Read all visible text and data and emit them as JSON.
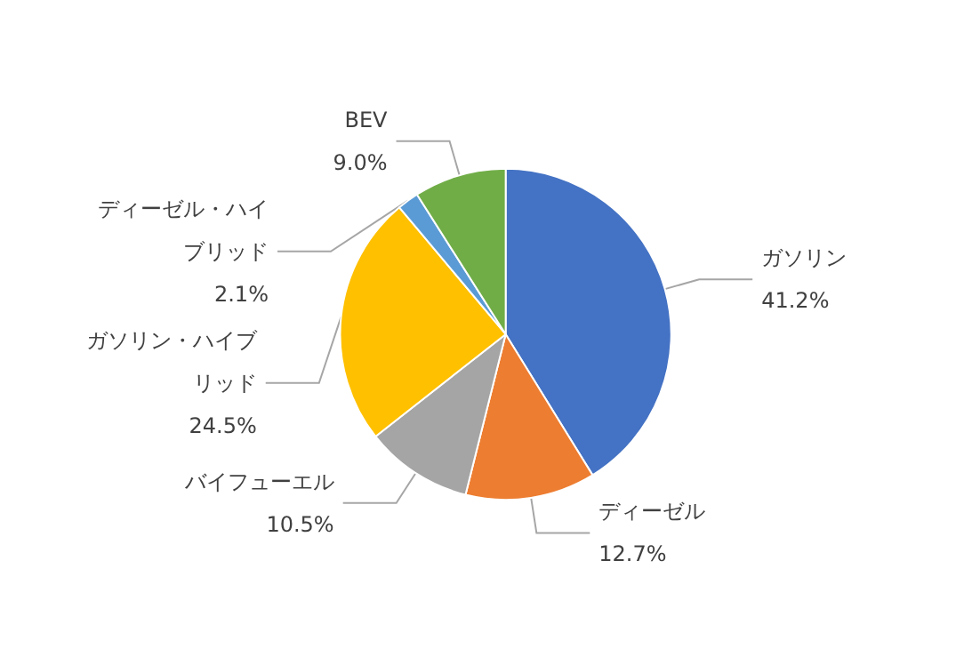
{
  "chart_data": {
    "type": "pie",
    "categories": [
      "ガソリン",
      "ディーゼル",
      "バイフューエル",
      "ガソリン・ハイブリッド",
      "ディーゼル・ハイブリッド",
      "BEV"
    ],
    "values": [
      41.2,
      12.7,
      10.5,
      24.5,
      2.1,
      9.0
    ],
    "value_labels": [
      "41.2%",
      "12.7%",
      "10.5%",
      "24.5%",
      "2.1%",
      "9.0%"
    ],
    "colors": [
      "#4472c4",
      "#ed7d31",
      "#a5a5a5",
      "#ffc000",
      "#5b9bd5",
      "#70ad47"
    ],
    "legend": false
  }
}
